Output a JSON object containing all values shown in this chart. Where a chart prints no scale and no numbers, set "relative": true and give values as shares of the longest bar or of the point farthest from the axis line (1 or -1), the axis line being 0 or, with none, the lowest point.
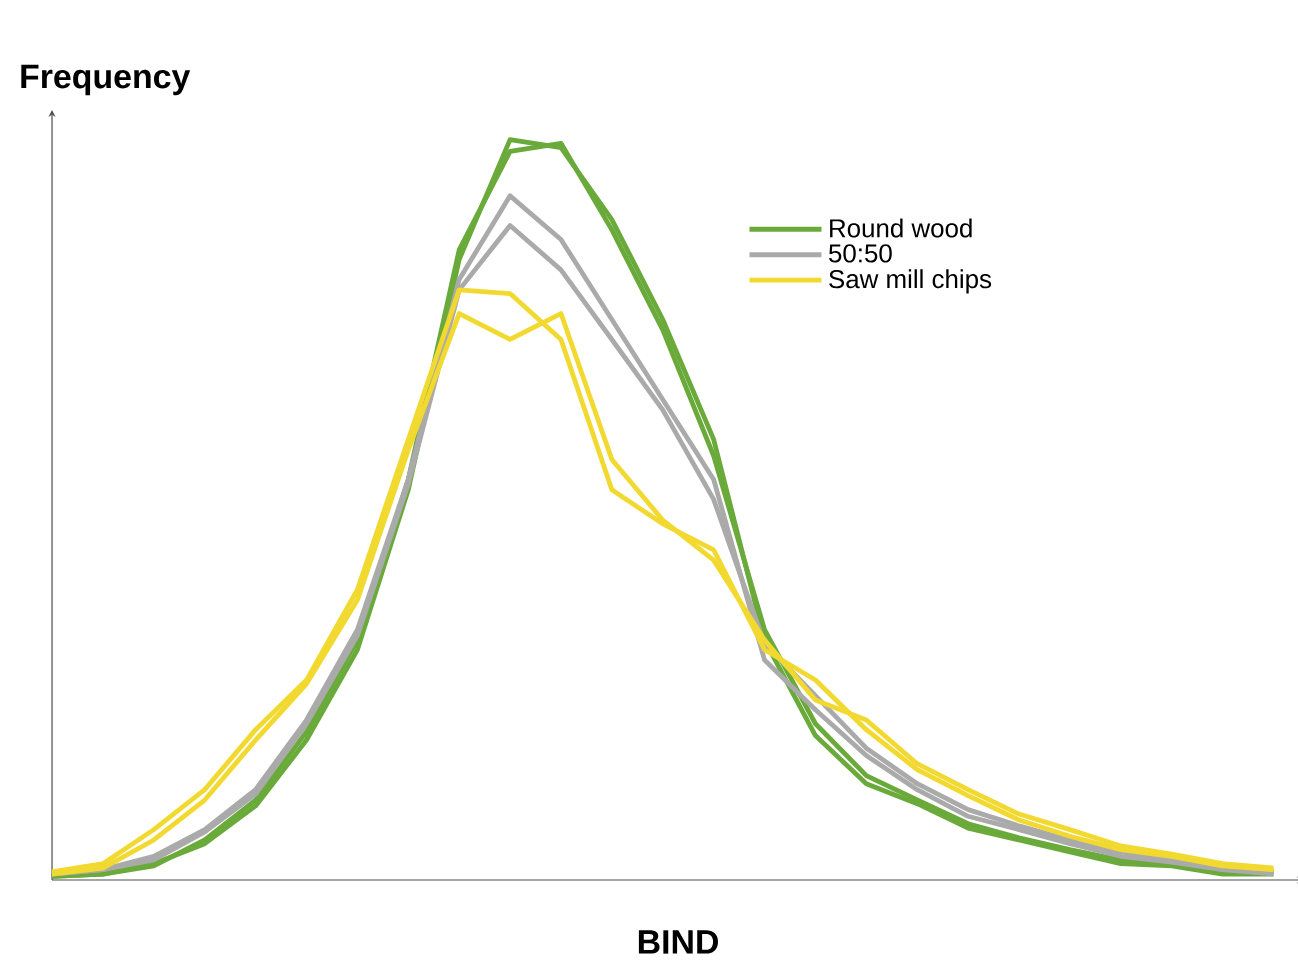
{
  "chart_data": {
    "type": "line",
    "relative": true,
    "ylabel": "Frequency",
    "xlabel": "BIND",
    "legend": "top right",
    "marker": "none",
    "line_style": "solid",
    "categories": [
      null,
      null,
      null,
      null,
      null,
      null,
      null,
      null,
      null,
      null,
      null,
      null,
      null,
      null,
      null,
      null,
      null,
      null,
      null,
      null,
      null,
      null,
      null,
      null,
      null
    ],
    "series": [
      {
        "name": "Round wood",
        "color": "#6aaa3a",
        "values": [
          0.005,
          0.008,
          0.022,
          0.049,
          0.1,
          0.189,
          0.311,
          0.527,
          0.838,
          1,
          0.989,
          0.892,
          0.757,
          0.595,
          0.324,
          0.195,
          0.13,
          0.103,
          0.07,
          0.054,
          0.038,
          0.022,
          0.019,
          0.008,
          0.008
        ]
      },
      {
        "color": "#6aaa3a",
        "values": [
          0.005,
          0.008,
          0.019,
          0.054,
          0.108,
          0.2,
          0.324,
          0.541,
          0.851,
          0.984,
          0.995,
          0.878,
          0.743,
          0.573,
          0.338,
          0.211,
          0.141,
          0.108,
          0.076,
          0.057,
          0.041,
          0.027,
          0.022,
          0.014,
          0.011
        ]
      },
      {
        "name": "50:50",
        "color": "#aaaaaa",
        "values": [
          0.008,
          0.014,
          0.032,
          0.068,
          0.122,
          0.216,
          0.338,
          0.541,
          0.811,
          0.924,
          0.865,
          0.757,
          0.649,
          0.541,
          0.297,
          0.23,
          0.168,
          0.122,
          0.086,
          0.068,
          0.049,
          0.032,
          0.024,
          0.014,
          0.008
        ]
      },
      {
        "color": "#aaaaaa",
        "values": [
          0.008,
          0.014,
          0.027,
          0.065,
          0.116,
          0.211,
          0.33,
          0.535,
          0.797,
          0.884,
          0.824,
          0.73,
          0.635,
          0.514,
          0.319,
          0.249,
          0.178,
          0.13,
          0.095,
          0.073,
          0.054,
          0.038,
          0.027,
          0.016,
          0.011
        ]
      },
      {
        "name": "Saw mill chips",
        "color": "#f2d930",
        "values": [
          0.011,
          0.022,
          0.068,
          0.122,
          0.203,
          0.27,
          0.392,
          0.595,
          0.797,
          0.792,
          0.73,
          0.527,
          0.481,
          0.446,
          0.311,
          0.27,
          0.203,
          0.149,
          0.114,
          0.081,
          0.059,
          0.041,
          0.032,
          0.019,
          0.014
        ]
      },
      {
        "color": "#f2d930",
        "values": [
          0.008,
          0.016,
          0.054,
          0.108,
          0.189,
          0.265,
          0.378,
          0.581,
          0.765,
          0.73,
          0.765,
          0.568,
          0.486,
          0.432,
          0.324,
          0.243,
          0.216,
          0.157,
          0.122,
          0.089,
          0.068,
          0.046,
          0.035,
          0.022,
          0.016
        ]
      }
    ]
  }
}
